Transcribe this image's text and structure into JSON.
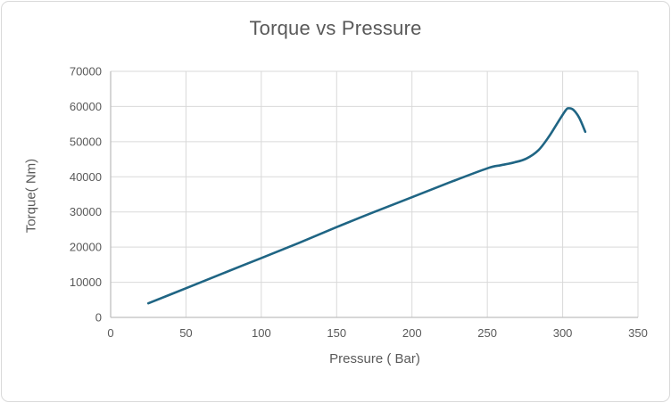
{
  "window": {
    "background": "#ffffff",
    "border_color": "#d9d9d9"
  },
  "chart_data": {
    "type": "line",
    "title": "Torque vs Pressure",
    "xlabel": "Pressure ( Bar)",
    "ylabel": "Torque( Nm)",
    "xlim": [
      0,
      350
    ],
    "ylim": [
      0,
      70000
    ],
    "x_ticks": [
      0,
      50,
      100,
      150,
      200,
      250,
      300,
      350
    ],
    "y_ticks": [
      0,
      10000,
      20000,
      30000,
      40000,
      50000,
      60000,
      70000
    ],
    "grid": true,
    "legend_position": "none",
    "colors": {
      "series": "#1f6584",
      "grid": "#d9d9d9",
      "axis": "#bfbfbf",
      "text": "#595959"
    },
    "series": [
      {
        "name": "Torque",
        "points": [
          [
            25,
            4000
          ],
          [
            50,
            8300
          ],
          [
            75,
            12600
          ],
          [
            100,
            16900
          ],
          [
            125,
            21200
          ],
          [
            150,
            25700
          ],
          [
            175,
            30000
          ],
          [
            200,
            34200
          ],
          [
            225,
            38400
          ],
          [
            250,
            42400
          ],
          [
            259,
            43300
          ],
          [
            268,
            44100
          ],
          [
            276,
            45200
          ],
          [
            284,
            47600
          ],
          [
            291,
            51500
          ],
          [
            297,
            55600
          ],
          [
            302,
            58900
          ],
          [
            304,
            59500
          ],
          [
            307,
            59100
          ],
          [
            311,
            56800
          ],
          [
            315,
            52800
          ]
        ]
      }
    ]
  }
}
